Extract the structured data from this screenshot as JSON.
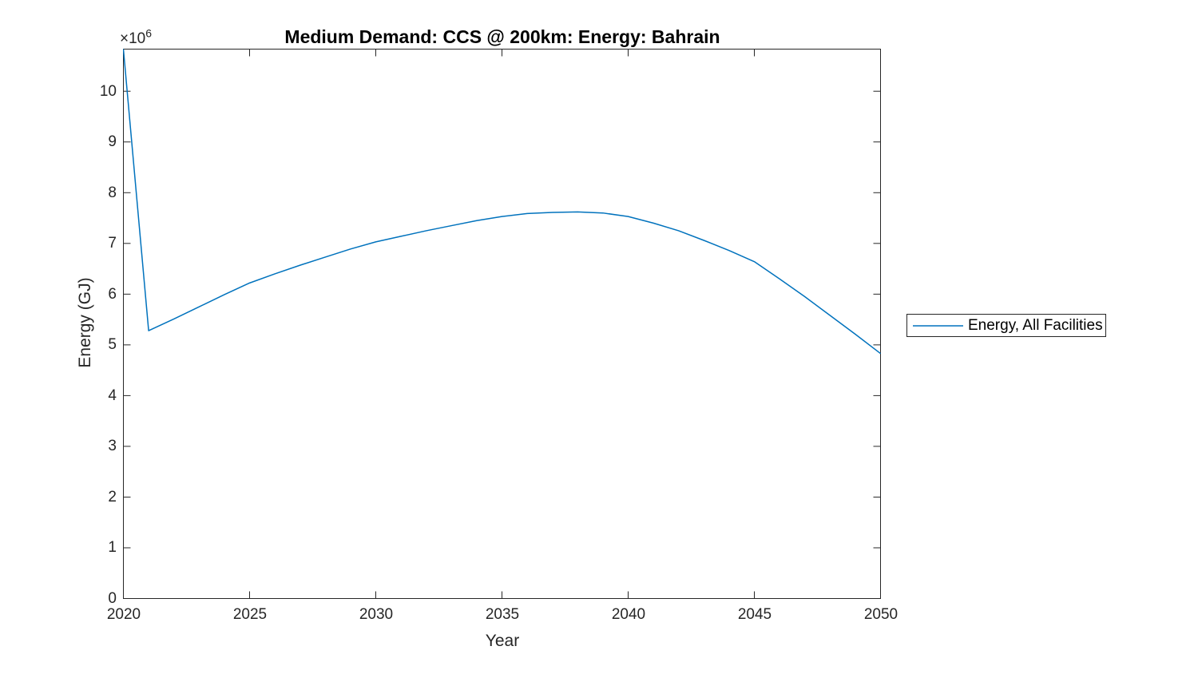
{
  "figure": {
    "background": "#ffffff"
  },
  "colors": {
    "axis": "#262626",
    "tick_label": "#262626",
    "title": "#000000",
    "line": "#0072BD",
    "background": "#ffffff"
  },
  "chart_data": {
    "type": "line",
    "title": "Medium Demand: CCS @ 200km: Energy: Bahrain",
    "xlabel": "Year",
    "ylabel": "Energy (GJ)",
    "y_axis_multiplier": {
      "base": "×10",
      "exponent": "6"
    },
    "grid": false,
    "box": true,
    "xlim": [
      2020,
      2050
    ],
    "ylim": [
      0,
      10830000
    ],
    "x_ticks": {
      "values": [
        2020,
        2025,
        2030,
        2035,
        2040,
        2045,
        2050
      ],
      "labels": [
        "2020",
        "2025",
        "2030",
        "2035",
        "2040",
        "2045",
        "2050"
      ]
    },
    "y_ticks": {
      "values": [
        0,
        1000000,
        2000000,
        3000000,
        4000000,
        5000000,
        6000000,
        7000000,
        8000000,
        9000000,
        10000000
      ],
      "labels": [
        "0",
        "1",
        "2",
        "3",
        "4",
        "5",
        "6",
        "7",
        "8",
        "9",
        "10"
      ]
    },
    "legend_position": "east-outside",
    "x": [
      2020,
      2021,
      2022,
      2023,
      2024,
      2025,
      2026,
      2027,
      2028,
      2029,
      2030,
      2031,
      2032,
      2033,
      2034,
      2035,
      2036,
      2037,
      2038,
      2039,
      2040,
      2041,
      2042,
      2043,
      2044,
      2045,
      2046,
      2047,
      2048,
      2049,
      2050
    ],
    "series": [
      {
        "name": "Energy, All Facilities",
        "color": "#0072BD",
        "values": [
          10830000,
          5280000,
          5510000,
          5750000,
          5990000,
          6220000,
          6400000,
          6570000,
          6730000,
          6890000,
          7030000,
          7140000,
          7250000,
          7350000,
          7450000,
          7530000,
          7590000,
          7610000,
          7620000,
          7600000,
          7530000,
          7400000,
          7250000,
          7060000,
          6860000,
          6640000,
          6300000,
          5950000,
          5580000,
          5210000,
          4830000
        ]
      }
    ]
  },
  "legend": {
    "entries": [
      {
        "label": "Energy, All Facilities",
        "color": "#0072BD"
      }
    ]
  }
}
